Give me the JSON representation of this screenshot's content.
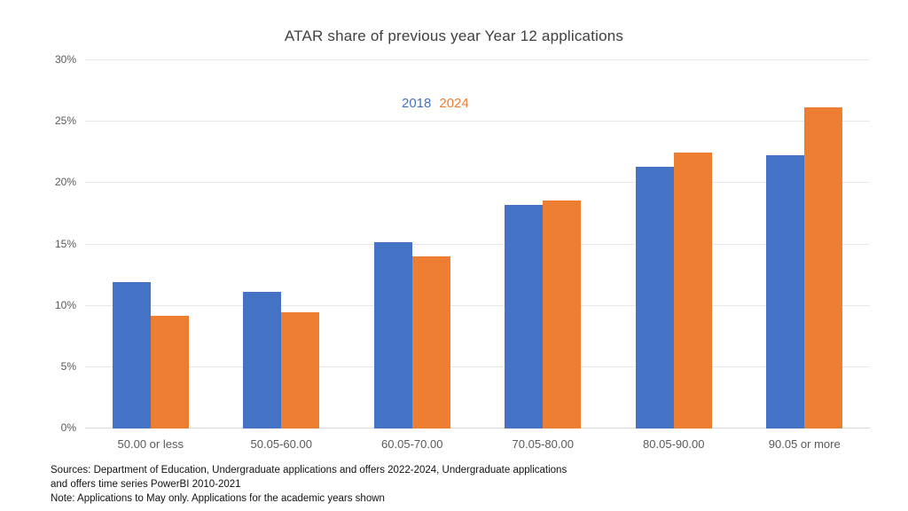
{
  "title": "ATAR share of previous year Year 12 applications",
  "legend": {
    "series1_label": "2018",
    "series2_label": "2024"
  },
  "colors": {
    "series_2018": "#4472C4",
    "series_2024": "#ED7D31",
    "gridline": "#e8e8e8",
    "baseline": "#d9d9d9",
    "title_text": "#404040",
    "axis_text": "#595959"
  },
  "chart_data": {
    "type": "bar",
    "title": "ATAR share of previous year Year 12 applications",
    "categories": [
      "50.00 or less",
      "50.05-60.00",
      "60.05-70.00",
      "70.05-80.00",
      "80.05-90.00",
      "90.05 or more"
    ],
    "series": [
      {
        "name": "2018",
        "color": "#4472C4",
        "values": [
          11.9,
          11.1,
          15.2,
          18.2,
          21.3,
          22.3
        ]
      },
      {
        "name": "2024",
        "color": "#ED7D31",
        "values": [
          9.2,
          9.5,
          14.0,
          18.6,
          22.5,
          26.2
        ]
      }
    ],
    "xlabel": "",
    "ylabel": "",
    "ylim": [
      0,
      30
    ],
    "y_ticks": [
      {
        "value": 0,
        "label": "0%"
      },
      {
        "value": 5,
        "label": "5%"
      },
      {
        "value": 10,
        "label": "10%"
      },
      {
        "value": 15,
        "label": "15%"
      },
      {
        "value": 20,
        "label": "20%"
      },
      {
        "value": 25,
        "label": "25%"
      },
      {
        "value": 30,
        "label": "30%"
      }
    ],
    "grid": true,
    "legend_position": "top-center"
  },
  "footnotes": {
    "line1": "Sources: Department of Education, Undergraduate applications and offers 2022-2024, Undergraduate applications",
    "line2": "and offers time series PowerBI 2010-2021",
    "line3": "Note: Applications to May only. Applications for the academic years shown"
  }
}
